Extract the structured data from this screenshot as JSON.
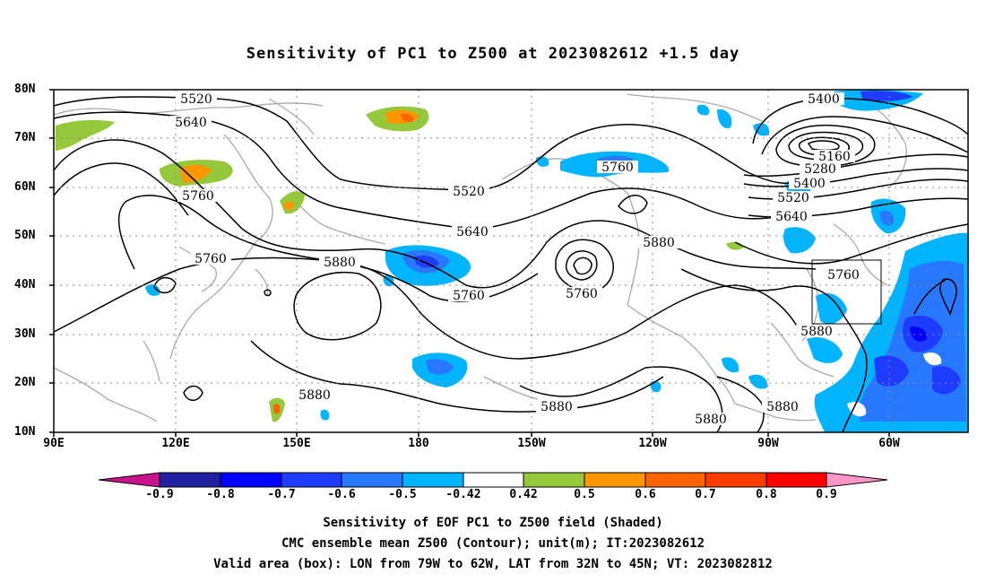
{
  "title": "Sensitivity of PC1 to Z500 at 2023082612 +1.5 day",
  "lat_labels": [
    "80N",
    "70N",
    "60N",
    "50N",
    "40N",
    "30N",
    "20N",
    "10N"
  ],
  "lon_labels": [
    "90E",
    "120E",
    "150E",
    "180",
    "150W",
    "120W",
    "90W",
    "60W"
  ],
  "contour_labels": {
    "c5520a": "5520",
    "c5640a": "5640",
    "c5760a": "5760",
    "c5760b": "5760",
    "c5880a": "5880",
    "c5520b": "5520",
    "c5640b": "5640",
    "c5760c": "5760",
    "c5760d": "5760",
    "c5880b": "5880",
    "c5400a": "5400",
    "c5160": "5160",
    "c5280": "5280",
    "c5400b": "5400",
    "c5520c": "5520",
    "c5640c": "5640",
    "c5760e": "5760",
    "c5760f": "5760",
    "c5880c": "5880",
    "c5880d": "5880",
    "c5880e": "5880",
    "c5880f": "5880",
    "c5880g": "5880"
  },
  "colorbar": {
    "labels": [
      "-0.9",
      "-0.8",
      "-0.7",
      "-0.6",
      "-0.5",
      "-0.42",
      "0.42",
      "0.5",
      "0.6",
      "0.7",
      "0.8",
      "0.9"
    ],
    "colors": [
      "#2020a0",
      "#0000ff",
      "#1e3cff",
      "#2878ff",
      "#00b4ff",
      "#ffffff",
      "#96c83c",
      "#ff9600",
      "#ff6400",
      "#ff3c00",
      "#ff0000"
    ],
    "end_low_color": "#c8148c",
    "end_high_color": "#ff96c8"
  },
  "shading_colors": {
    "neg_light": "#00b4ff",
    "neg_mid": "#2878ff",
    "neg_dark": "#1e3cff",
    "neg_darkest": "#0000ff",
    "pos_green": "#96c83c",
    "pos_orange": "#ff9600",
    "pos_red": "#ff6400"
  },
  "captions": [
    "Sensitivity of EOF PC1 to Z500 field (Shaded)",
    "CMC ensemble mean Z500 (Contour); unit(m); IT:2023082612",
    "Valid area (box): LON from 79W to 62W, LAT from 32N to 45N; VT: 2023082812"
  ]
}
